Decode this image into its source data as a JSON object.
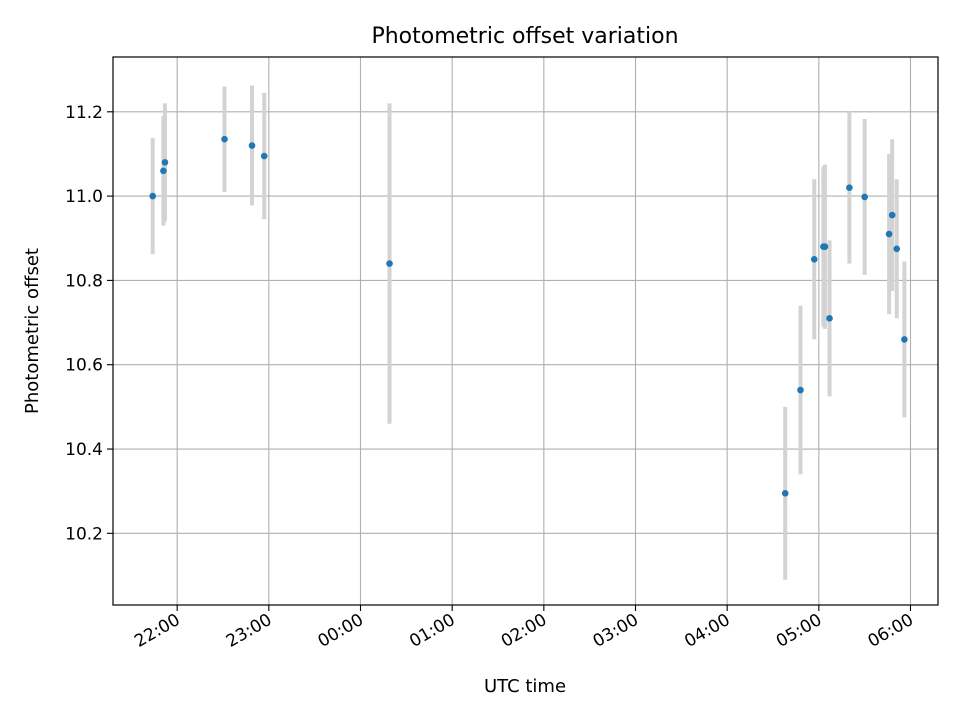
{
  "chart_data": {
    "type": "scatter",
    "title": "Photometric offset variation",
    "xlabel": "UTC time",
    "ylabel": "Photometric offset",
    "x_tick_labels": [
      "22:00",
      "23:00",
      "00:00",
      "01:00",
      "02:00",
      "03:00",
      "04:00",
      "05:00",
      "06:00"
    ],
    "y_tick_labels": [
      "10.2",
      "10.4",
      "10.6",
      "10.8",
      "11.0",
      "11.2"
    ],
    "y_ticks": [
      10.2,
      10.4,
      10.6,
      10.8,
      11.0,
      11.2
    ],
    "x_ticks_hours": [
      22,
      23,
      24,
      25,
      26,
      27,
      28,
      29,
      30
    ],
    "xlim_hours": [
      21.3,
      30.3
    ],
    "ylim": [
      10.03,
      11.33
    ],
    "grid": true,
    "colors": {
      "point": "#1f77b4",
      "errorbar": "#d3d3d3",
      "grid": "#b0b0b0"
    },
    "points": [
      {
        "time": "21:44",
        "y": 11.0,
        "err": 0.138
      },
      {
        "time": "21:51",
        "y": 11.06,
        "err": 0.13
      },
      {
        "time": "21:52",
        "y": 11.08,
        "err": 0.14
      },
      {
        "time": "22:31",
        "y": 11.135,
        "err": 0.125
      },
      {
        "time": "22:49",
        "y": 11.12,
        "err": 0.142
      },
      {
        "time": "22:57",
        "y": 11.095,
        "err": 0.15
      },
      {
        "time": "00:19",
        "y": 10.84,
        "err": 0.38
      },
      {
        "time": "04:38",
        "y": 10.295,
        "err": 0.205
      },
      {
        "time": "04:48",
        "y": 10.54,
        "err": 0.2
      },
      {
        "time": "04:57",
        "y": 10.85,
        "err": 0.19
      },
      {
        "time": "05:03",
        "y": 10.88,
        "err": 0.19
      },
      {
        "time": "05:04",
        "y": 10.88,
        "err": 0.195
      },
      {
        "time": "05:07",
        "y": 10.71,
        "err": 0.185
      },
      {
        "time": "05:20",
        "y": 11.02,
        "err": 0.18
      },
      {
        "time": "05:30",
        "y": 10.998,
        "err": 0.185
      },
      {
        "time": "05:46",
        "y": 10.91,
        "err": 0.19
      },
      {
        "time": "05:48",
        "y": 10.955,
        "err": 0.18
      },
      {
        "time": "05:51",
        "y": 10.875,
        "err": 0.165
      },
      {
        "time": "05:56",
        "y": 10.66,
        "err": 0.185
      }
    ]
  }
}
